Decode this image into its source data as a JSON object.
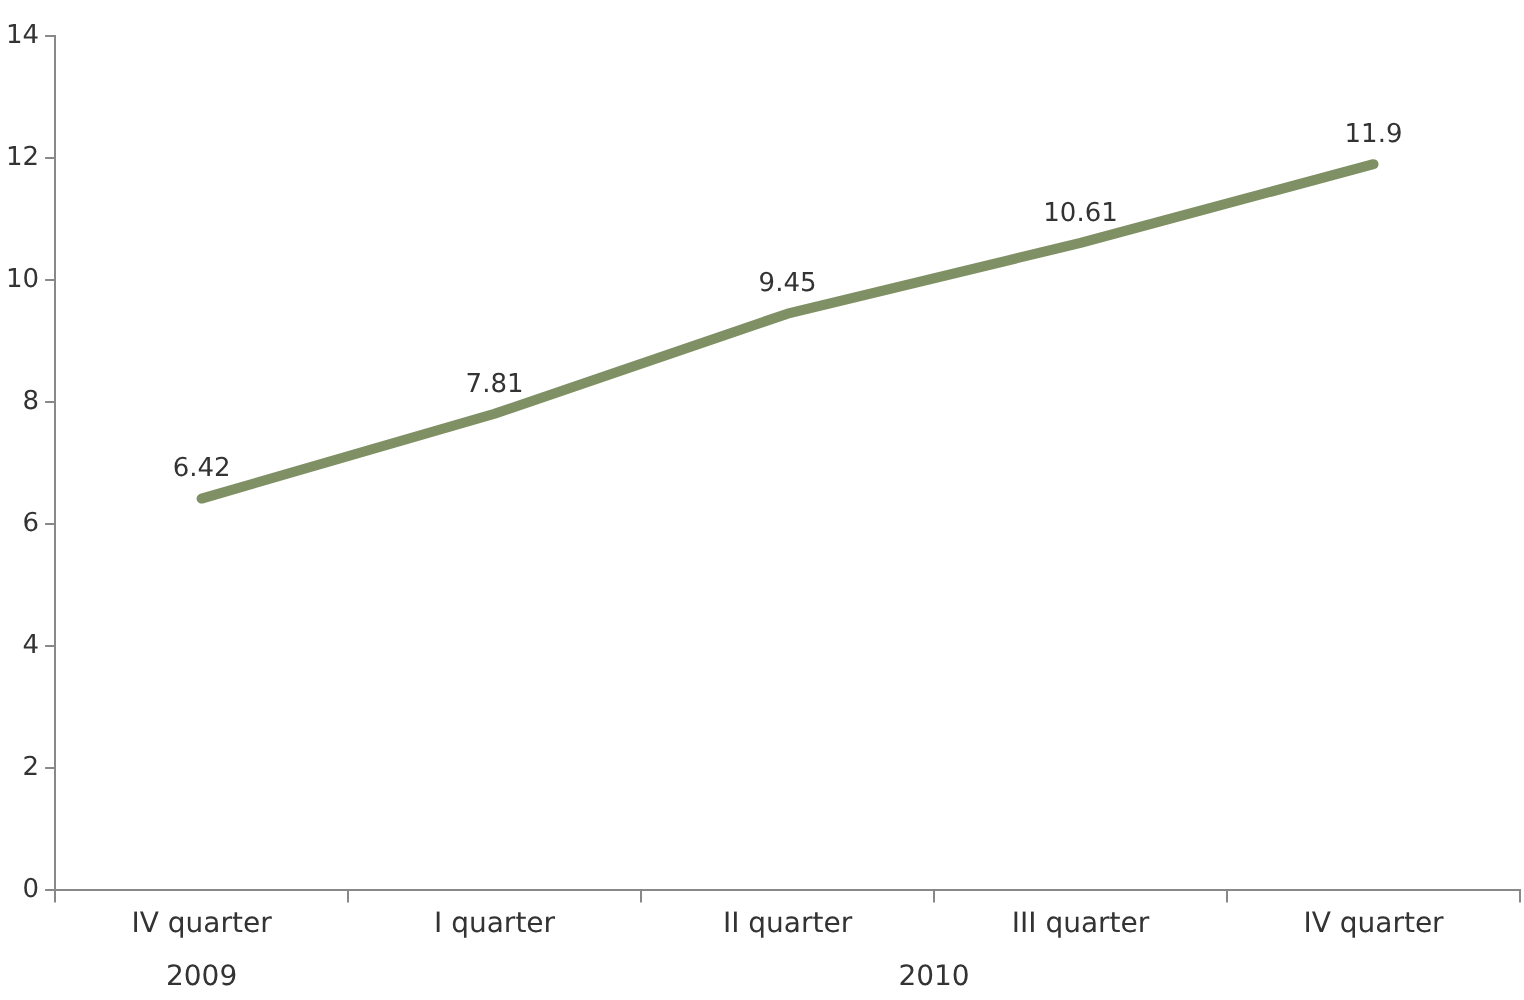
{
  "chart_data": {
    "type": "line",
    "categories": [
      "IV quarter",
      "I quarter",
      "II quarter",
      "III quarter",
      "IV quarter"
    ],
    "series": [
      {
        "color": "#7f9164",
        "values": [
          6.42,
          7.81,
          9.45,
          10.61,
          11.9
        ]
      }
    ],
    "ylim": [
      0,
      14
    ],
    "yticks": [
      0,
      2,
      4,
      6,
      8,
      10,
      12,
      14
    ],
    "grid": false,
    "legend": false,
    "marker": "none",
    "line_style": "solid",
    "data_labels": true,
    "annotations": [
      "2009",
      "2010"
    ]
  }
}
